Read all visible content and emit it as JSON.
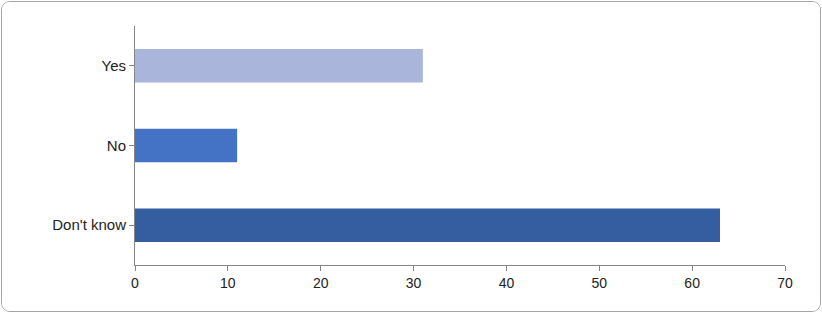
{
  "chart_data": {
    "type": "bar",
    "orientation": "horizontal",
    "categories": [
      "Yes",
      "No",
      "Don't know"
    ],
    "values": [
      31,
      11,
      63
    ],
    "colors": [
      "#a9b5db",
      "#4472c4",
      "#345e9f"
    ],
    "xlim": [
      0,
      70
    ],
    "xticks": [
      0,
      10,
      20,
      30,
      40,
      50,
      60,
      70
    ],
    "grid": false
  }
}
